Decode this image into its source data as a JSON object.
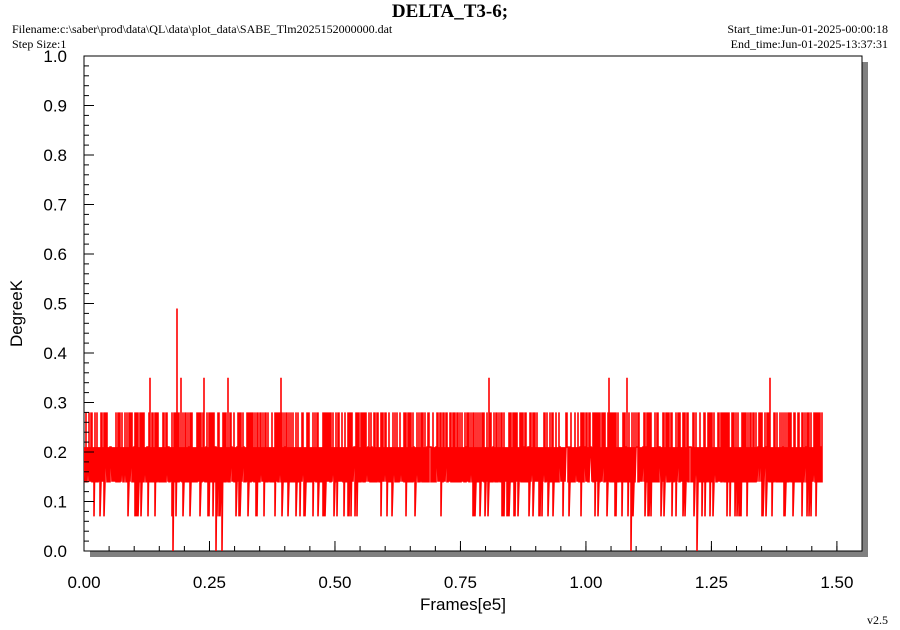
{
  "header": {
    "title": "DELTA_T3-6;",
    "filename": "Filename:c:\\saber\\prod\\data\\QL\\data\\plot_data\\SABE_Tlm2025152000000.dat",
    "step_size": "Step Size:1",
    "start_time": "Start_time:Jun-01-2025-00:00:18",
    "end_time": "End_time:Jun-01-2025-13:37:31",
    "version": "v2.5"
  },
  "colors": {
    "series": "#ff0000",
    "frame": "#000000",
    "shadow": "#808080",
    "background": "#ffffff"
  },
  "chart_data": {
    "type": "line",
    "title": "DELTA_T3-6;",
    "xlabel": "Frames[e5]",
    "ylabel": "DegreeK",
    "xlim": [
      0,
      1.55
    ],
    "ylim": [
      0,
      1.0
    ],
    "x_ticks": [
      "0.00",
      "0.25",
      "0.50",
      "0.75",
      "1.00",
      "1.25",
      "1.50"
    ],
    "y_ticks": [
      "0.0",
      "0.1",
      "0.2",
      "0.3",
      "0.4",
      "0.5",
      "0.6",
      "0.7",
      "0.8",
      "0.9",
      "1.0"
    ],
    "grid": false,
    "legend": "none",
    "series": [
      {
        "x_range": [
          0,
          1.47
        ],
        "levels": [
          0.0,
          0.07,
          0.14,
          0.21,
          0.28,
          0.35,
          0.49
        ],
        "band": [
          0.14,
          0.28
        ],
        "spikes": [
          {
            "x": 0.132,
            "y": 0.35
          },
          {
            "x": 0.186,
            "y": 0.49
          },
          {
            "x": 0.193,
            "y": 0.35
          },
          {
            "x": 0.24,
            "y": 0.35
          },
          {
            "x": 0.286,
            "y": 0.35
          },
          {
            "x": 0.392,
            "y": 0.35
          },
          {
            "x": 0.806,
            "y": 0.35
          },
          {
            "x": 1.045,
            "y": 0.35
          },
          {
            "x": 1.082,
            "y": 0.35
          },
          {
            "x": 1.366,
            "y": 0.35
          },
          {
            "x": 0.178,
            "y": 0.0
          },
          {
            "x": 0.262,
            "y": 0.0
          },
          {
            "x": 0.275,
            "y": 0.0
          },
          {
            "x": 1.089,
            "y": 0.0
          },
          {
            "x": 1.222,
            "y": 0.0
          }
        ]
      }
    ]
  }
}
